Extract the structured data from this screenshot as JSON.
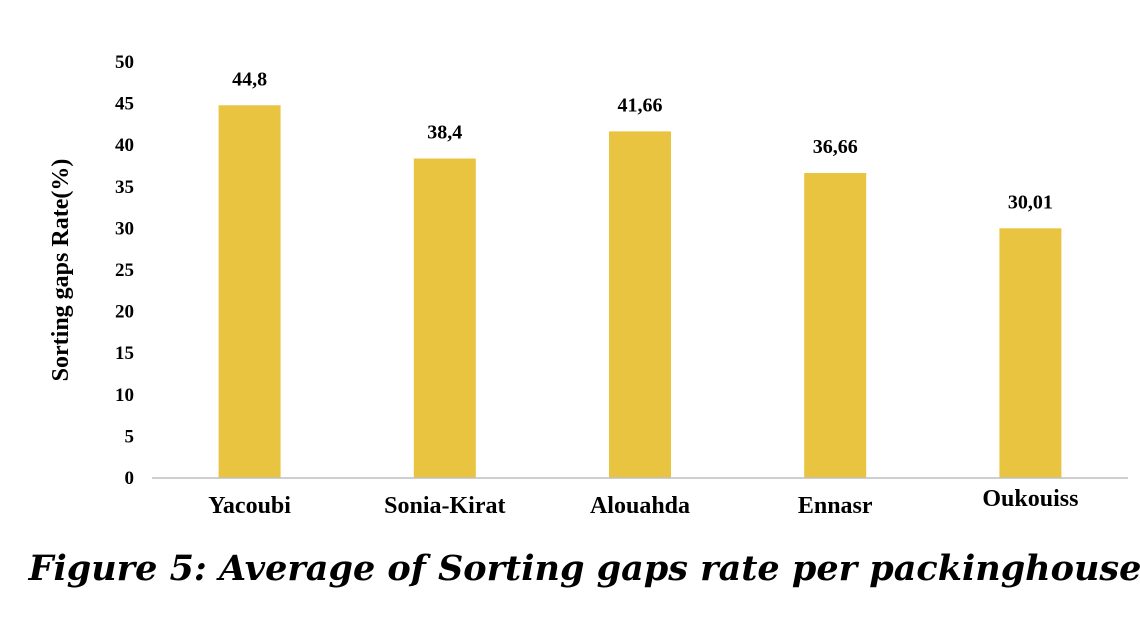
{
  "chart_data": {
    "type": "bar",
    "categories": [
      "Yacoubi",
      "Sonia-Kirat",
      "Alouahda",
      "Ennasr",
      "Oukouiss"
    ],
    "values": [
      44.8,
      38.4,
      41.66,
      36.66,
      30.01
    ],
    "data_labels": [
      "44,8",
      "38,4",
      "41,66",
      "36,66",
      "30,01"
    ],
    "ylabel": "Sorting gaps Rate(%)",
    "xlabel": "",
    "ylim": [
      0,
      50
    ],
    "yticks": [
      "0",
      "5",
      "10",
      "15",
      "20",
      "25",
      "30",
      "35",
      "40",
      "45",
      "50"
    ],
    "bar_color": "#E8C441",
    "grid": false,
    "legend": "none"
  },
  "caption": "Figure 5: Average of Sorting gaps rate per packinghouse"
}
